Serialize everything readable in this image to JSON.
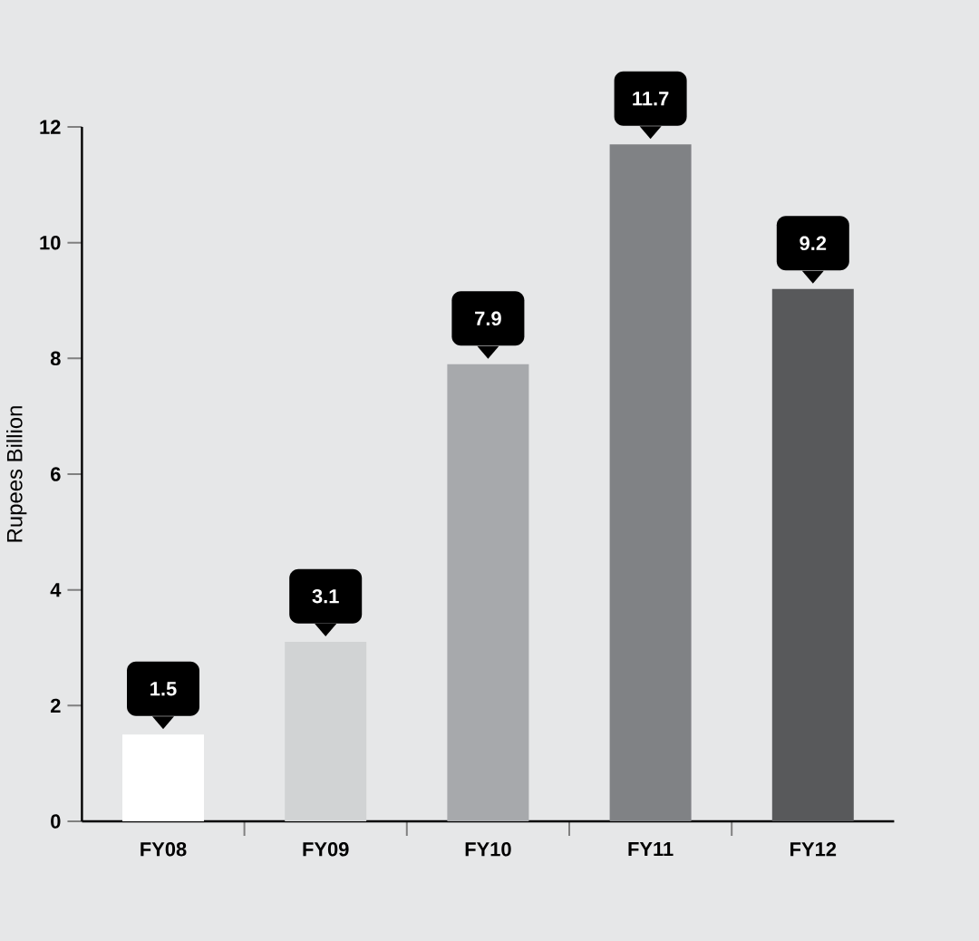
{
  "chart_data": {
    "type": "bar",
    "ylabel": "Rupees Billion",
    "categories": [
      "FY08",
      "FY09",
      "FY10",
      "FY11",
      "FY12"
    ],
    "values": [
      1.5,
      3.1,
      7.9,
      11.7,
      9.2
    ],
    "colors": [
      "#ffffff",
      "#d1d3d4",
      "#a7a9ac",
      "#808285",
      "#58595b"
    ],
    "ylim": [
      0,
      12
    ],
    "yticks": [
      0,
      2,
      4,
      6,
      8,
      10,
      12
    ],
    "data_labels": true
  }
}
